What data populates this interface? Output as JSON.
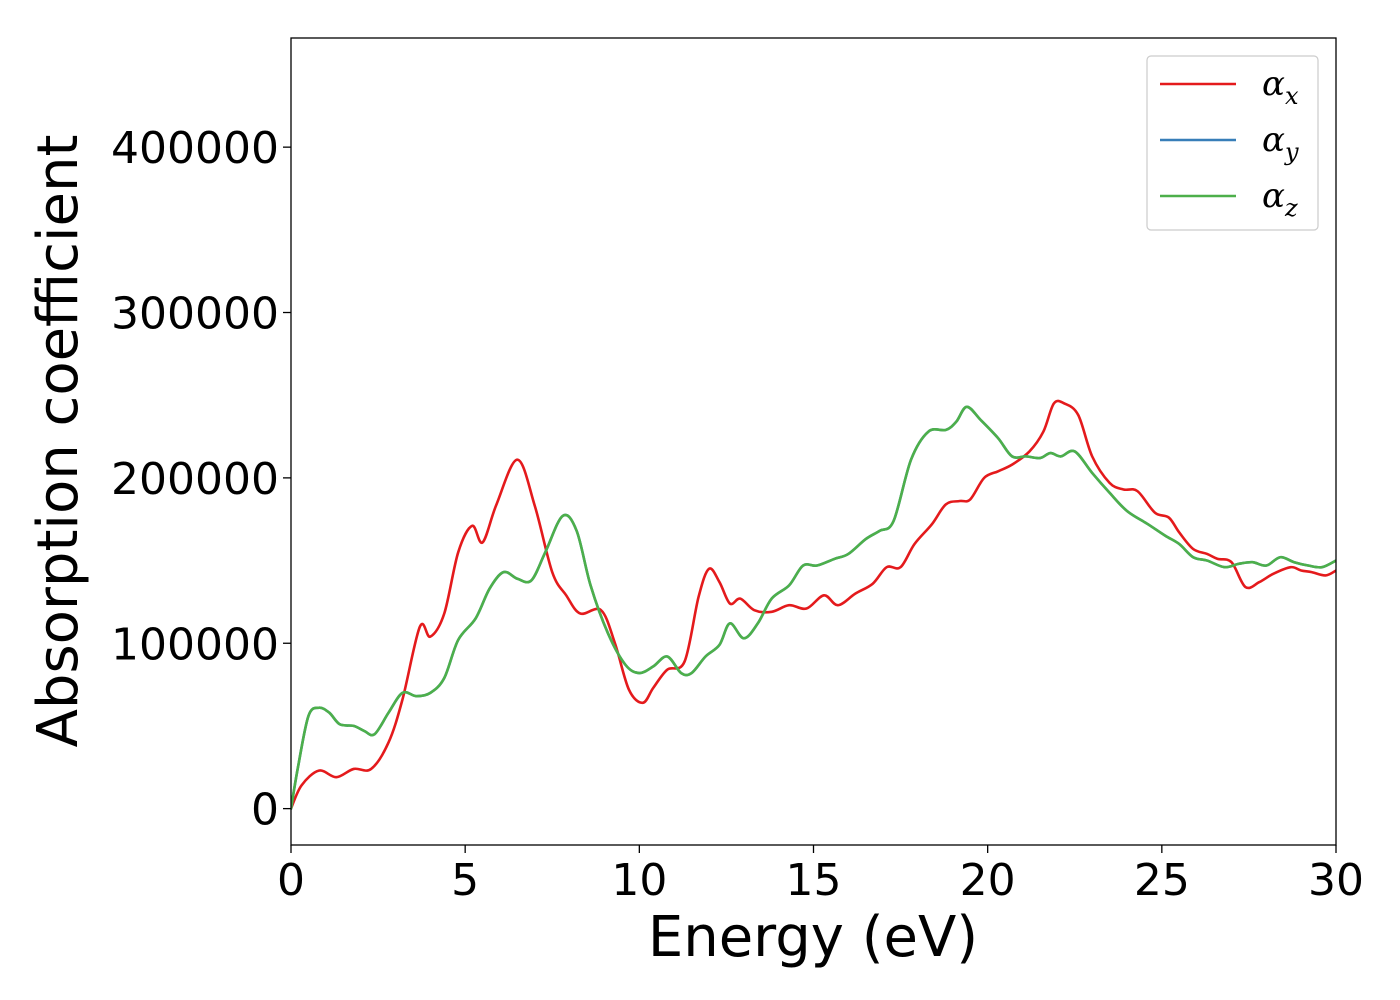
{
  "chart_data": {
    "type": "line",
    "title": "",
    "xlabel": "Energy (eV)",
    "ylabel": "Absorption coefficient",
    "xlim": [
      0,
      30
    ],
    "ylim": [
      -22000,
      466000
    ],
    "xticks": [
      0,
      5,
      10,
      15,
      20,
      25,
      30
    ],
    "xtick_labels": [
      "0",
      "5",
      "10",
      "15",
      "20",
      "25",
      "30"
    ],
    "yticks": [
      0,
      100000,
      200000,
      300000,
      400000
    ],
    "ytick_labels": [
      "0",
      "100000",
      "200000",
      "300000",
      "400000"
    ],
    "grid": false,
    "legend_position": "upper right",
    "series": [
      {
        "name": "αx",
        "base": "α",
        "sub": "x",
        "color": "#e41a1c",
        "points": [
          [
            0,
            0
          ],
          [
            0.3,
            14000
          ],
          [
            0.8,
            23000
          ],
          [
            1.3,
            19000
          ],
          [
            1.8,
            24000
          ],
          [
            2.3,
            24000
          ],
          [
            2.8,
            40000
          ],
          [
            3.2,
            66000
          ],
          [
            3.7,
            110000
          ],
          [
            4.0,
            104000
          ],
          [
            4.4,
            118000
          ],
          [
            4.8,
            155000
          ],
          [
            5.2,
            171000
          ],
          [
            5.5,
            161000
          ],
          [
            5.9,
            184000
          ],
          [
            6.5,
            211000
          ],
          [
            7.0,
            183000
          ],
          [
            7.5,
            143000
          ],
          [
            7.9,
            129000
          ],
          [
            8.3,
            118000
          ],
          [
            8.9,
            120000
          ],
          [
            9.3,
            100000
          ],
          [
            9.7,
            72000
          ],
          [
            10.1,
            64000
          ],
          [
            10.4,
            73000
          ],
          [
            10.8,
            84000
          ],
          [
            11.3,
            89000
          ],
          [
            11.7,
            128000
          ],
          [
            12.0,
            145000
          ],
          [
            12.3,
            137000
          ],
          [
            12.6,
            124000
          ],
          [
            12.9,
            127000
          ],
          [
            13.3,
            120000
          ],
          [
            13.8,
            119000
          ],
          [
            14.3,
            123000
          ],
          [
            14.8,
            121000
          ],
          [
            15.3,
            129000
          ],
          [
            15.7,
            123000
          ],
          [
            16.2,
            130000
          ],
          [
            16.7,
            136000
          ],
          [
            17.1,
            146000
          ],
          [
            17.5,
            146000
          ],
          [
            17.9,
            160000
          ],
          [
            18.4,
            172000
          ],
          [
            18.8,
            184000
          ],
          [
            19.2,
            186000
          ],
          [
            19.5,
            187000
          ],
          [
            19.9,
            200000
          ],
          [
            20.3,
            204000
          ],
          [
            20.7,
            208000
          ],
          [
            21.2,
            216000
          ],
          [
            21.6,
            228000
          ],
          [
            21.9,
            245000
          ],
          [
            22.2,
            245000
          ],
          [
            22.6,
            238000
          ],
          [
            23.0,
            213000
          ],
          [
            23.5,
            197000
          ],
          [
            23.9,
            193000
          ],
          [
            24.3,
            192000
          ],
          [
            24.8,
            179000
          ],
          [
            25.2,
            176000
          ],
          [
            25.5,
            167000
          ],
          [
            25.9,
            157000
          ],
          [
            26.3,
            154000
          ],
          [
            26.6,
            151000
          ],
          [
            27.0,
            149000
          ],
          [
            27.4,
            134000
          ],
          [
            27.8,
            137000
          ],
          [
            28.2,
            142000
          ],
          [
            28.7,
            146000
          ],
          [
            29.0,
            144000
          ],
          [
            29.3,
            143000
          ],
          [
            29.7,
            141000
          ],
          [
            30.0,
            144000
          ]
        ]
      },
      {
        "name": "αy",
        "base": "α",
        "sub": "y",
        "color": "#377eb8",
        "points": [
          [
            0,
            0
          ],
          [
            0.2,
            25000
          ],
          [
            0.5,
            56000
          ],
          [
            0.8,
            61000
          ],
          [
            1.1,
            58000
          ],
          [
            1.4,
            51000
          ],
          [
            1.8,
            50000
          ],
          [
            2.1,
            47000
          ],
          [
            2.4,
            45000
          ],
          [
            2.8,
            58000
          ],
          [
            3.2,
            70000
          ],
          [
            3.6,
            68000
          ],
          [
            4.0,
            70000
          ],
          [
            4.4,
            79000
          ],
          [
            4.8,
            102000
          ],
          [
            5.3,
            115000
          ],
          [
            5.7,
            133000
          ],
          [
            6.1,
            143000
          ],
          [
            6.5,
            139000
          ],
          [
            6.9,
            138000
          ],
          [
            7.3,
            155000
          ],
          [
            7.8,
            177000
          ],
          [
            8.2,
            168000
          ],
          [
            8.6,
            135000
          ],
          [
            9.1,
            106000
          ],
          [
            9.6,
            87000
          ],
          [
            10.0,
            82000
          ],
          [
            10.4,
            86000
          ],
          [
            10.8,
            92000
          ],
          [
            11.2,
            82000
          ],
          [
            11.5,
            82000
          ],
          [
            11.9,
            92000
          ],
          [
            12.3,
            99000
          ],
          [
            12.6,
            112000
          ],
          [
            13.0,
            103000
          ],
          [
            13.4,
            112000
          ],
          [
            13.8,
            127000
          ],
          [
            14.3,
            135000
          ],
          [
            14.7,
            147000
          ],
          [
            15.1,
            147000
          ],
          [
            15.6,
            151000
          ],
          [
            16.0,
            154000
          ],
          [
            16.5,
            163000
          ],
          [
            16.9,
            168000
          ],
          [
            17.3,
            174000
          ],
          [
            17.8,
            211000
          ],
          [
            18.3,
            228000
          ],
          [
            18.8,
            229000
          ],
          [
            19.1,
            234000
          ],
          [
            19.4,
            243000
          ],
          [
            19.8,
            235000
          ],
          [
            20.3,
            224000
          ],
          [
            20.7,
            213000
          ],
          [
            21.1,
            213000
          ],
          [
            21.5,
            212000
          ],
          [
            21.8,
            215000
          ],
          [
            22.1,
            213000
          ],
          [
            22.5,
            216000
          ],
          [
            23.0,
            203000
          ],
          [
            23.5,
            191000
          ],
          [
            24.0,
            180000
          ],
          [
            24.6,
            172000
          ],
          [
            25.1,
            165000
          ],
          [
            25.5,
            160000
          ],
          [
            25.9,
            152000
          ],
          [
            26.3,
            150000
          ],
          [
            26.8,
            146000
          ],
          [
            27.2,
            148000
          ],
          [
            27.6,
            149000
          ],
          [
            28.0,
            147000
          ],
          [
            28.4,
            152000
          ],
          [
            28.8,
            149000
          ],
          [
            29.2,
            147000
          ],
          [
            29.6,
            146000
          ],
          [
            30.0,
            150000
          ]
        ]
      },
      {
        "name": "αz",
        "base": "α",
        "sub": "z",
        "color": "#4daf4a",
        "points": [
          [
            0,
            0
          ],
          [
            0.2,
            25000
          ],
          [
            0.5,
            56000
          ],
          [
            0.8,
            61000
          ],
          [
            1.1,
            58000
          ],
          [
            1.4,
            51000
          ],
          [
            1.8,
            50000
          ],
          [
            2.1,
            47000
          ],
          [
            2.4,
            45000
          ],
          [
            2.8,
            58000
          ],
          [
            3.2,
            70000
          ],
          [
            3.6,
            68000
          ],
          [
            4.0,
            70000
          ],
          [
            4.4,
            79000
          ],
          [
            4.8,
            102000
          ],
          [
            5.3,
            115000
          ],
          [
            5.7,
            133000
          ],
          [
            6.1,
            143000
          ],
          [
            6.5,
            139000
          ],
          [
            6.9,
            138000
          ],
          [
            7.3,
            155000
          ],
          [
            7.8,
            177000
          ],
          [
            8.2,
            168000
          ],
          [
            8.6,
            135000
          ],
          [
            9.1,
            106000
          ],
          [
            9.6,
            87000
          ],
          [
            10.0,
            82000
          ],
          [
            10.4,
            86000
          ],
          [
            10.8,
            92000
          ],
          [
            11.2,
            82000
          ],
          [
            11.5,
            82000
          ],
          [
            11.9,
            92000
          ],
          [
            12.3,
            99000
          ],
          [
            12.6,
            112000
          ],
          [
            13.0,
            103000
          ],
          [
            13.4,
            112000
          ],
          [
            13.8,
            127000
          ],
          [
            14.3,
            135000
          ],
          [
            14.7,
            147000
          ],
          [
            15.1,
            147000
          ],
          [
            15.6,
            151000
          ],
          [
            16.0,
            154000
          ],
          [
            16.5,
            163000
          ],
          [
            16.9,
            168000
          ],
          [
            17.3,
            174000
          ],
          [
            17.8,
            211000
          ],
          [
            18.3,
            228000
          ],
          [
            18.8,
            229000
          ],
          [
            19.1,
            234000
          ],
          [
            19.4,
            243000
          ],
          [
            19.8,
            235000
          ],
          [
            20.3,
            224000
          ],
          [
            20.7,
            213000
          ],
          [
            21.1,
            213000
          ],
          [
            21.5,
            212000
          ],
          [
            21.8,
            215000
          ],
          [
            22.1,
            213000
          ],
          [
            22.5,
            216000
          ],
          [
            23.0,
            203000
          ],
          [
            23.5,
            191000
          ],
          [
            24.0,
            180000
          ],
          [
            24.6,
            172000
          ],
          [
            25.1,
            165000
          ],
          [
            25.5,
            160000
          ],
          [
            25.9,
            152000
          ],
          [
            26.3,
            150000
          ],
          [
            26.8,
            146000
          ],
          [
            27.2,
            148000
          ],
          [
            27.6,
            149000
          ],
          [
            28.0,
            147000
          ],
          [
            28.4,
            152000
          ],
          [
            28.8,
            149000
          ],
          [
            29.2,
            147000
          ],
          [
            29.6,
            146000
          ],
          [
            30.0,
            150000
          ]
        ]
      }
    ]
  }
}
